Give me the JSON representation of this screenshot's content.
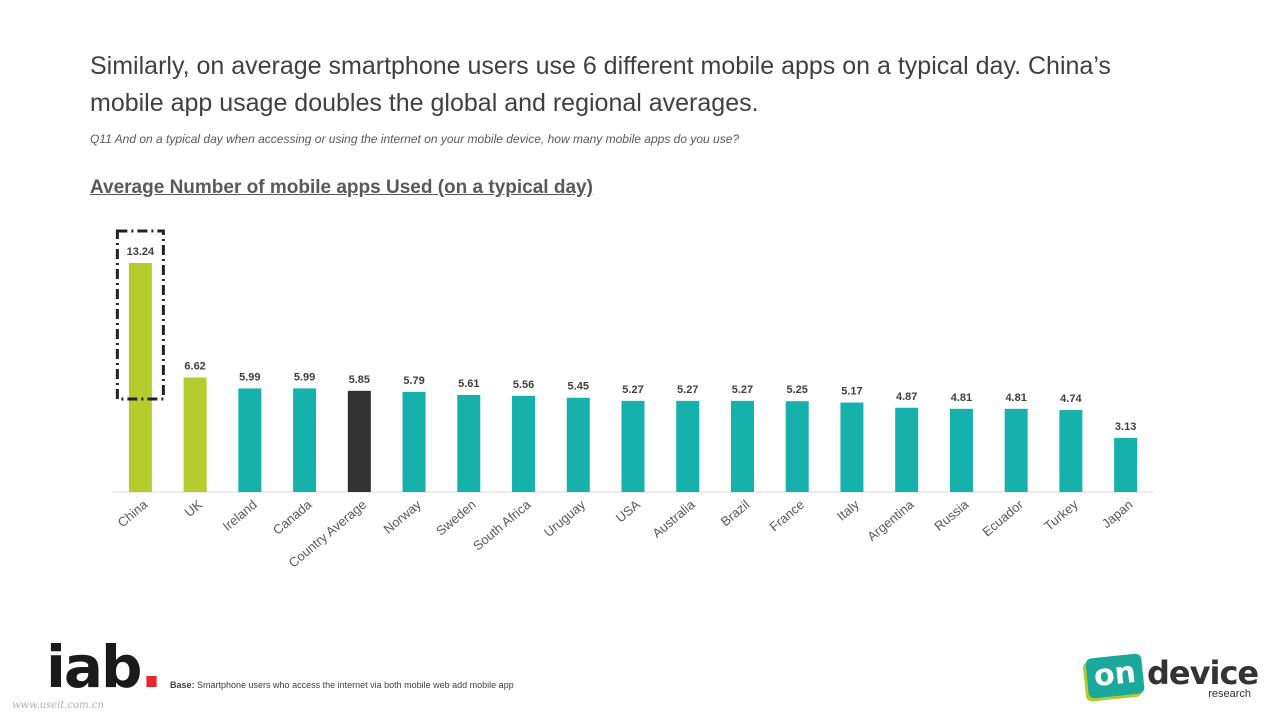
{
  "headline": "Similarly, on average smartphone users use 6 different mobile apps on a typical day. China’s mobile app usage doubles the global and regional averages.",
  "question": "Q11 And on a typical day when accessing or using the internet on your mobile device, how many mobile apps do you use?",
  "chart_title": "Average Number of mobile apps Used (on a typical day)",
  "base_note": {
    "label": "Base:",
    "text": " Smartphone users who access the internet via both mobile web add mobile app"
  },
  "logos": {
    "iab": "iab",
    "iab_dot": ".",
    "ondevice_on": "on",
    "ondevice_device": "device",
    "ondevice_research": "research"
  },
  "watermark": "www.useit.com.cn",
  "colors": {
    "highlight": "#b5cc2e",
    "standard": "#17b1ac",
    "average": "#333333"
  },
  "chart_data": {
    "type": "bar",
    "title": "Average Number of mobile apps Used (on a typical day)",
    "xlabel": "",
    "ylabel": "",
    "ylim": [
      0,
      14
    ],
    "grid": false,
    "categories": [
      "China",
      "UK",
      "Ireland",
      "Canada",
      "Country Average",
      "Norway",
      "Sweden",
      "South Africa",
      "Uruguay",
      "USA",
      "Australia",
      "Brazil",
      "France",
      "Italy",
      "Argentina",
      "Russia",
      "Ecuador",
      "Turkey",
      "Japan"
    ],
    "values": [
      13.24,
      6.62,
      5.99,
      5.99,
      5.85,
      5.79,
      5.61,
      5.56,
      5.45,
      5.27,
      5.27,
      5.27,
      5.25,
      5.17,
      4.87,
      4.81,
      4.81,
      4.74,
      3.13
    ],
    "value_labels": [
      "13.24",
      "6.62",
      "5.99",
      "5.99",
      "5.85",
      "5.79",
      "5.61",
      "5.56",
      "5.45",
      "5.27",
      "5.27",
      "5.27",
      "5.25",
      "5.17",
      "4.87",
      "4.81",
      "4.81",
      "4.74",
      "3.13"
    ],
    "bar_colors": [
      "highlight",
      "highlight",
      "standard",
      "standard",
      "average",
      "standard",
      "standard",
      "standard",
      "standard",
      "standard",
      "standard",
      "standard",
      "standard",
      "standard",
      "standard",
      "standard",
      "standard",
      "standard",
      "standard"
    ],
    "annotation": "dashed box around China"
  }
}
